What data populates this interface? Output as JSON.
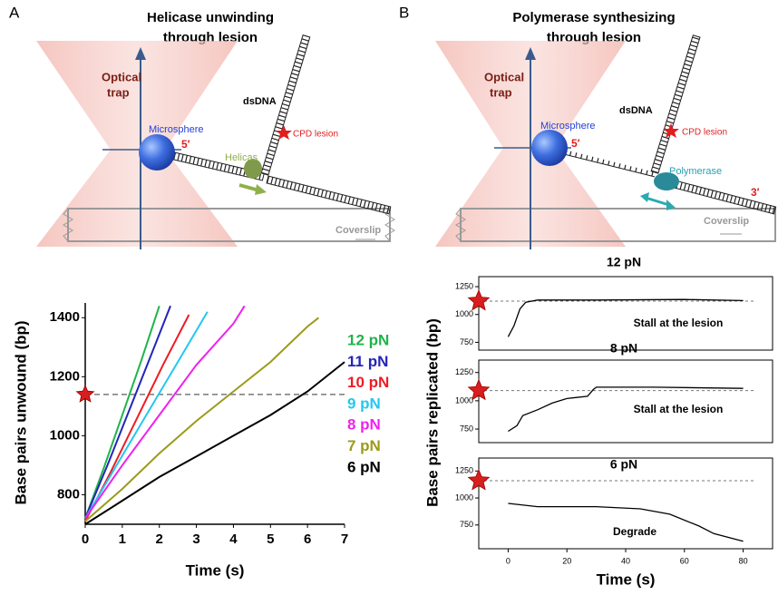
{
  "diagrams": [
    {
      "panel_label": "A",
      "title": [
        "Helicase unwinding",
        "through lesion"
      ],
      "trap_label": [
        "Optical",
        "trap"
      ],
      "bead_label": "Microsphere",
      "dna_label": "dsDNA",
      "lesion_label": "CPD lesion",
      "end_5": "5′",
      "motor_label": "Helicas",
      "surface_label": "Coverslip"
    },
    {
      "panel_label": "B",
      "title": [
        "Polymerase synthesizing",
        "through lesion"
      ],
      "trap_label": [
        "Optical",
        "trap"
      ],
      "bead_label": "Microsphere",
      "dna_label": "dsDNA",
      "lesion_label": "CPD lesion",
      "end_5": "5′",
      "motor_label": "Polymerase",
      "end_3": "3′",
      "surface_label": "Coverslip"
    }
  ],
  "chart_data": [
    {
      "type": "line",
      "xlabel": "Time (s)",
      "ylabel": "Base pairs unwound (bp)",
      "xlim": [
        0,
        7
      ],
      "xticks": [
        0,
        1,
        2,
        3,
        4,
        5,
        6,
        7
      ],
      "ylim": [
        700,
        1450
      ],
      "yticks": [
        800,
        1000,
        1200,
        1400
      ],
      "reference_line": 1140,
      "series": [
        {
          "name": "12 pN",
          "color": "#1fb44a",
          "x": [
            0,
            0.5,
            1,
            1.5,
            2.0
          ],
          "values": [
            720,
            890,
            1070,
            1250,
            1440
          ]
        },
        {
          "name": "11 pN",
          "color": "#2424b8",
          "x": [
            0,
            0.6,
            1.2,
            1.8,
            2.3
          ],
          "values": [
            720,
            900,
            1090,
            1280,
            1440
          ]
        },
        {
          "name": "10 pN",
          "color": "#ee1c24",
          "x": [
            0,
            0.7,
            1.4,
            2.1,
            2.8
          ],
          "values": [
            710,
            880,
            1060,
            1240,
            1410
          ]
        },
        {
          "name": "9 pN",
          "color": "#22c8f0",
          "x": [
            0,
            0.8,
            1.6,
            2.5,
            3.3
          ],
          "values": [
            720,
            890,
            1060,
            1250,
            1420
          ]
        },
        {
          "name": "8 pN",
          "color": "#ee22ee",
          "x": [
            0,
            1,
            2,
            3,
            4,
            4.3
          ],
          "values": [
            720,
            900,
            1070,
            1240,
            1380,
            1440
          ]
        },
        {
          "name": "7 pN",
          "color": "#9c9a1a",
          "x": [
            0,
            1,
            2,
            3,
            4,
            5,
            6,
            6.3
          ],
          "values": [
            710,
            820,
            940,
            1050,
            1150,
            1250,
            1370,
            1400
          ]
        },
        {
          "name": "6 pN",
          "color": "#000000",
          "x": [
            0,
            1,
            2,
            3,
            4,
            5,
            6,
            7
          ],
          "values": [
            700,
            780,
            860,
            930,
            1000,
            1070,
            1150,
            1250
          ]
        }
      ]
    },
    {
      "type": "line",
      "title": "12 pN",
      "annotation": "Stall at the lesion",
      "xlim": [
        -10,
        90
      ],
      "ylim": [
        680,
        1340
      ],
      "yticks": [
        750,
        1000,
        1250
      ],
      "reference_line": 1120,
      "series": [
        {
          "color": "#000000",
          "x": [
            0,
            2,
            4,
            6,
            10,
            30,
            60,
            80
          ],
          "values": [
            800,
            900,
            1050,
            1110,
            1130,
            1130,
            1135,
            1125
          ]
        }
      ]
    },
    {
      "type": "line",
      "title": "8 pN",
      "annotation": "Stall at the lesion",
      "xlim": [
        -10,
        90
      ],
      "ylim": [
        630,
        1360
      ],
      "yticks": [
        750,
        1000,
        1250
      ],
      "reference_line": 1090,
      "series": [
        {
          "color": "#000000",
          "x": [
            0,
            3,
            5,
            10,
            15,
            20,
            27,
            29,
            30,
            50,
            80
          ],
          "values": [
            730,
            780,
            870,
            920,
            980,
            1020,
            1040,
            1100,
            1120,
            1120,
            1110
          ]
        }
      ]
    },
    {
      "type": "line",
      "title": "6 pN",
      "annotation": "Degrade",
      "xlabel": "Time (s)",
      "ylabel": "Base pairs replicated (bp)",
      "xlim": [
        -10,
        90
      ],
      "xticks": [
        0,
        20,
        40,
        60,
        80
      ],
      "ylim": [
        530,
        1370
      ],
      "yticks": [
        750,
        1000,
        1250
      ],
      "reference_line": 1160,
      "series": [
        {
          "color": "#000000",
          "x": [
            0,
            10,
            30,
            45,
            55,
            65,
            70,
            80
          ],
          "values": [
            950,
            920,
            920,
            900,
            850,
            740,
            670,
            600
          ]
        }
      ]
    }
  ]
}
